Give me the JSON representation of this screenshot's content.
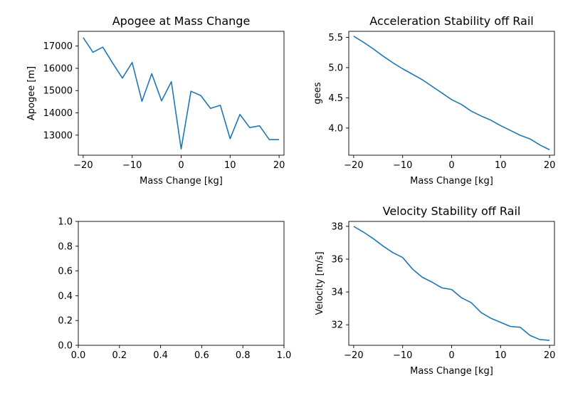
{
  "chart_data": [
    {
      "type": "line",
      "title": "Apogee at Mass Change",
      "xlabel": "Mass Change [kg]",
      "ylabel": "Apogee [m]",
      "xlim": [
        -21,
        21
      ],
      "ylim": [
        12100,
        17660
      ],
      "xticks": [
        -20,
        -10,
        0,
        10,
        20
      ],
      "yticks": [
        13000,
        14000,
        15000,
        16000,
        17000
      ],
      "xtick_labels": [
        "−20",
        "−10",
        "0",
        "10",
        "20"
      ],
      "ytick_labels": [
        "13000",
        "14000",
        "15000",
        "16000",
        "17000"
      ],
      "color": "#1f77b4",
      "series": [
        {
          "x": [
            -20,
            -18,
            -16,
            -14,
            -12,
            -10,
            -8,
            -6,
            -4,
            -2,
            0,
            2,
            4,
            6,
            8,
            10,
            12,
            14,
            16,
            18,
            20
          ],
          "values": [
            17380,
            16720,
            16950,
            16240,
            15560,
            16260,
            14520,
            15760,
            14540,
            15400,
            12380,
            14970,
            14780,
            14200,
            14340,
            12840,
            13930,
            13340,
            13420,
            12800,
            12800
          ]
        }
      ]
    },
    {
      "type": "line",
      "title": "Acceleration Stability off Rail",
      "xlabel": "Mass Change [kg]",
      "ylabel": "gees",
      "xlim": [
        -21,
        21
      ],
      "ylim": [
        3.55,
        5.6
      ],
      "xticks": [
        -20,
        -10,
        0,
        10,
        20
      ],
      "yticks": [
        4.0,
        4.5,
        5.0,
        5.5
      ],
      "xtick_labels": [
        "−20",
        "−10",
        "0",
        "10",
        "20"
      ],
      "ytick_labels": [
        "4.0",
        "4.5",
        "5.0",
        "5.5"
      ],
      "color": "#1f77b4",
      "series": [
        {
          "x": [
            -20,
            -18,
            -16,
            -14,
            -12,
            -10,
            -8,
            -6,
            -4,
            -2,
            0,
            2,
            4,
            6,
            8,
            10,
            12,
            14,
            16,
            18,
            20
          ],
          "values": [
            5.52,
            5.42,
            5.31,
            5.19,
            5.08,
            4.98,
            4.89,
            4.8,
            4.69,
            4.58,
            4.47,
            4.39,
            4.28,
            4.2,
            4.13,
            4.04,
            3.96,
            3.88,
            3.82,
            3.72,
            3.64
          ]
        }
      ]
    },
    {
      "type": "line",
      "title": "",
      "xlabel": "",
      "ylabel": "",
      "xlim": [
        0,
        1
      ],
      "ylim": [
        0,
        1
      ],
      "xticks": [
        0,
        0.2,
        0.4,
        0.6,
        0.8,
        1.0
      ],
      "yticks": [
        0,
        0.2,
        0.4,
        0.6,
        0.8,
        1.0
      ],
      "xtick_labels": [
        "0.0",
        "0.2",
        "0.4",
        "0.6",
        "0.8",
        "1.0"
      ],
      "ytick_labels": [
        "0.0",
        "0.2",
        "0.4",
        "0.6",
        "0.8",
        "1.0"
      ],
      "color": "#1f77b4",
      "series": []
    },
    {
      "type": "line",
      "title": "Velocity Stability off Rail",
      "xlabel": "Mass Change [kg]",
      "ylabel": "Velocity [m/s]",
      "xlim": [
        -21,
        21
      ],
      "ylim": [
        30.75,
        38.3
      ],
      "xticks": [
        -20,
        -10,
        0,
        10,
        20
      ],
      "yticks": [
        32,
        34,
        36,
        38
      ],
      "xtick_labels": [
        "−20",
        "−10",
        "0",
        "10",
        "20"
      ],
      "ytick_labels": [
        "32",
        "34",
        "36",
        "38"
      ],
      "color": "#1f77b4",
      "series": [
        {
          "x": [
            -20,
            -18,
            -16,
            -14,
            -12,
            -10,
            -8,
            -6,
            -4,
            -2,
            0,
            2,
            4,
            6,
            8,
            10,
            12,
            14,
            16,
            18,
            20
          ],
          "values": [
            38.0,
            37.65,
            37.25,
            36.8,
            36.4,
            36.1,
            35.4,
            34.9,
            34.6,
            34.25,
            34.15,
            33.65,
            33.35,
            32.75,
            32.4,
            32.15,
            31.9,
            31.85,
            31.35,
            31.1,
            31.05
          ]
        }
      ]
    }
  ]
}
